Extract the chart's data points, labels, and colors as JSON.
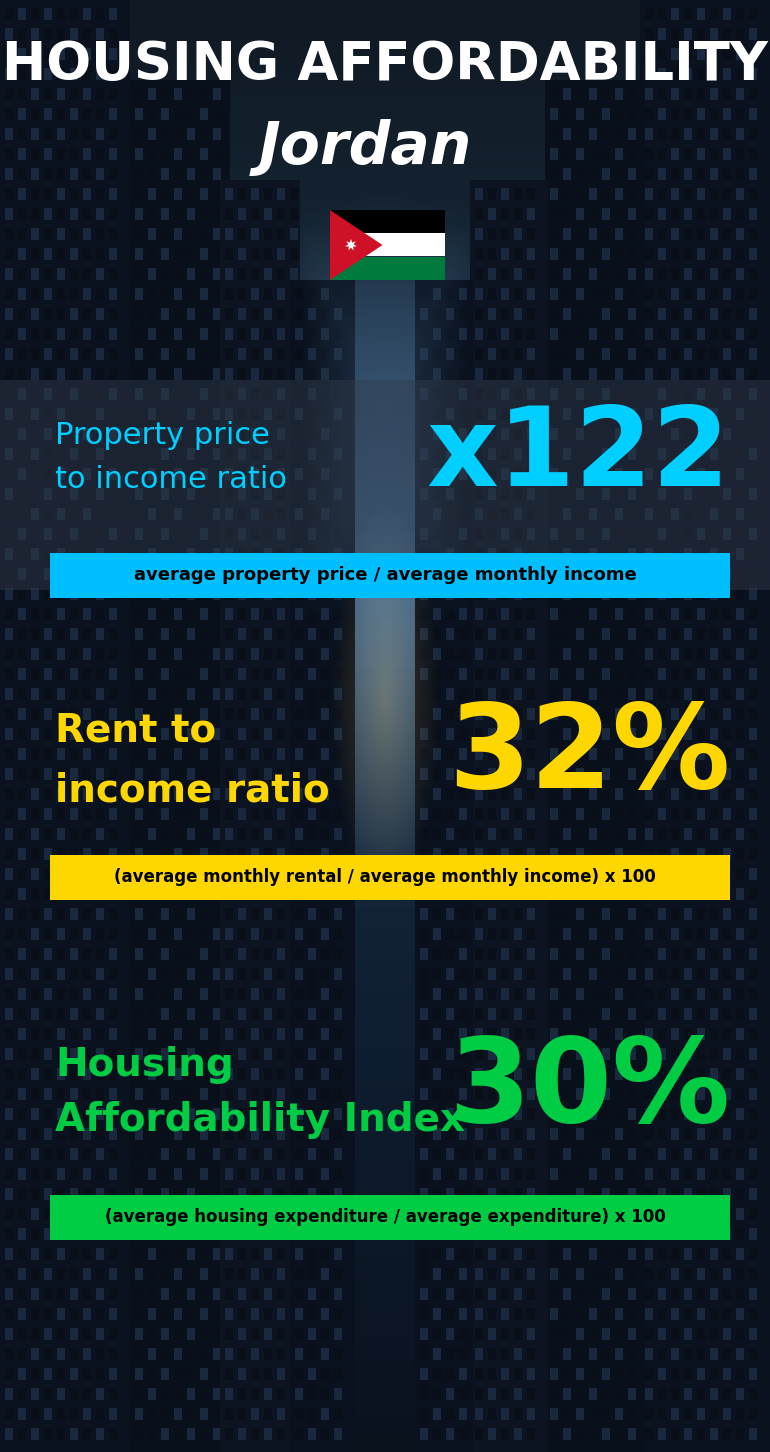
{
  "title_line1": "HOUSING AFFORDABILITY",
  "title_line2": "Jordan",
  "section1_label_line1": "Property price",
  "section1_label_line2": "to income ratio",
  "section1_value": "x122",
  "section1_sublabel": "average property price / average monthly income",
  "section1_label_color": "#00CFFF",
  "section1_value_color": "#00CFFF",
  "section1_bar_color": "#00BFFF",
  "section2_label_line1": "Rent to",
  "section2_label_line2": "income ratio",
  "section2_value": "32%",
  "section2_sublabel": "(average monthly rental / average monthly income) x 100",
  "section2_label_color": "#FFD700",
  "section2_value_color": "#FFD700",
  "section2_bar_color": "#FFD700",
  "section3_label_line1": "Housing",
  "section3_label_line2": "Affordability Index",
  "section3_value": "30%",
  "section3_sublabel": "(average housing expenditure / average expenditure) x 100",
  "section3_label_color": "#00CC44",
  "section3_value_color": "#00CC44",
  "section3_bar_color": "#00CC44",
  "title_color": "#FFFFFF",
  "subtitle_color": "#FFFFFF",
  "sublabel_text_color": "#000000",
  "fig_width": 7.7,
  "fig_height": 14.52
}
